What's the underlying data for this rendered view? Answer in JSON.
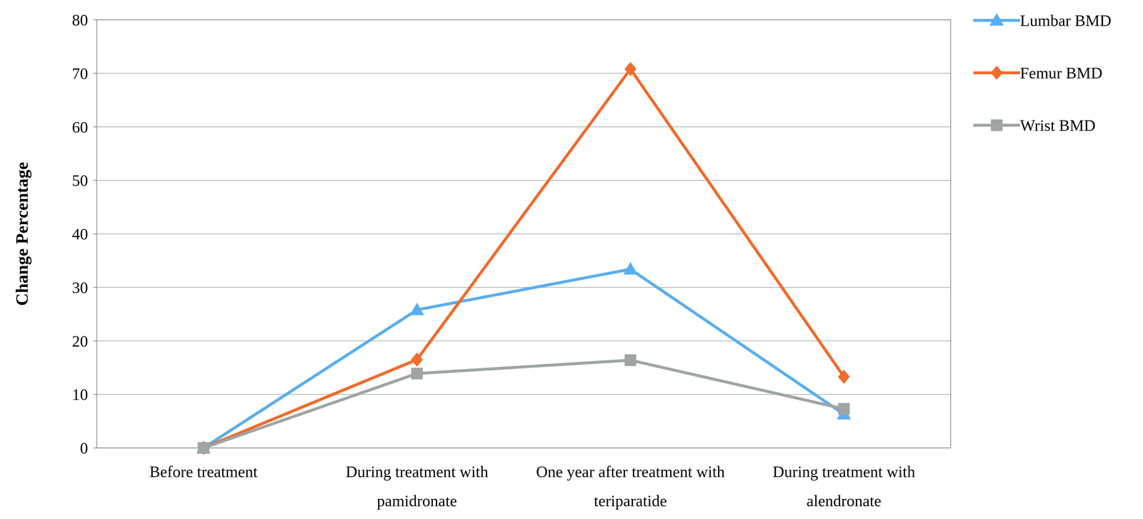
{
  "chart_data": {
    "type": "line",
    "y_label": "Change Percentage",
    "categories": [
      "Before treatment",
      "During treatment with pamidronate",
      "One year after treatment with teriparatide",
      "During treatment with alendronate"
    ],
    "series": [
      {
        "name": "Lumbar BMD",
        "color": "#5aaef0",
        "marker": "triangle",
        "line_style": "solid",
        "values": [
          0,
          25.8,
          33.4,
          6.3
        ]
      },
      {
        "name": "Femur BMD",
        "color": "#f26b2a",
        "marker": "diamond",
        "line_style": "solid",
        "values": [
          0,
          16.5,
          70.8,
          13.3
        ]
      },
      {
        "name": "Wrist BMD",
        "color": "#9ea5a4",
        "marker": "square",
        "line_style": "solid",
        "values": [
          0,
          13.9,
          16.4,
          7.3
        ]
      }
    ],
    "ylim": [
      0,
      80
    ],
    "yticks": [
      0,
      10,
      20,
      30,
      40,
      50,
      60,
      70,
      80
    ],
    "grid": true,
    "legend": "right"
  }
}
